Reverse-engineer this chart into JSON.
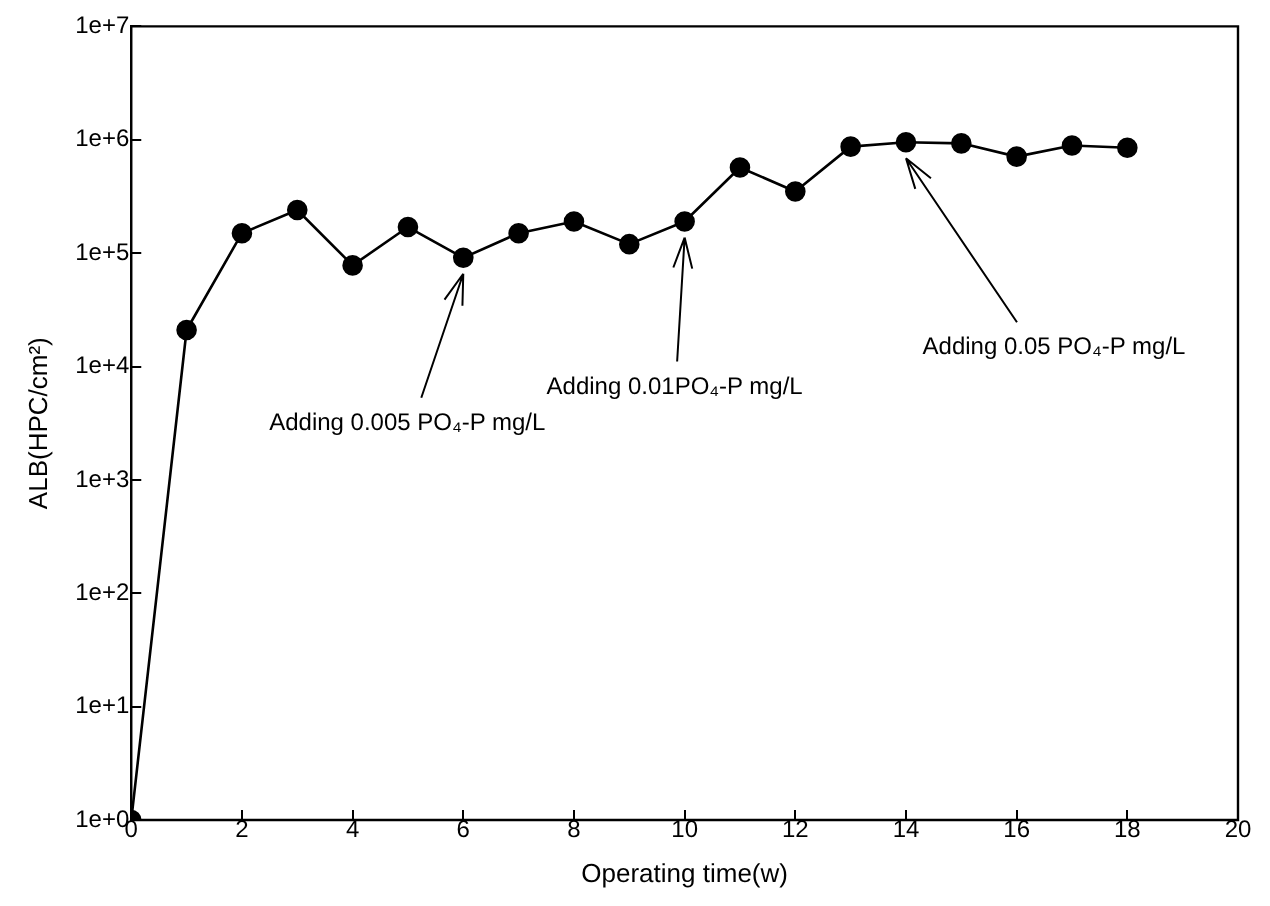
{
  "chart_data": {
    "type": "line",
    "xlabel": "Operating time(w)",
    "ylabel": "ALB(HPC/cm²)",
    "x": [
      0,
      1,
      2,
      3,
      4,
      5,
      6,
      7,
      8,
      9,
      10,
      11,
      12,
      13,
      14,
      15,
      16,
      17,
      18
    ],
    "series": [
      {
        "color": "#000000",
        "values": [
          1,
          21000,
          150000,
          240000,
          78000,
          170000,
          91000,
          150000,
          190000,
          120000,
          190000,
          570000,
          350000,
          870000,
          950000,
          930000,
          710000,
          890000,
          850000
        ]
      }
    ],
    "log": "y",
    "marker": "circle",
    "line_style": "solid",
    "grid": false,
    "legend": false,
    "xlim": [
      0,
      20
    ],
    "xticks": [
      0,
      2,
      4,
      6,
      8,
      10,
      12,
      14,
      16,
      18,
      20
    ],
    "ylim": [
      1,
      10000000
    ],
    "yticks": [
      {
        "value": 1,
        "label": "1e+0"
      },
      {
        "value": 10,
        "label": "1e+1"
      },
      {
        "value": 100,
        "label": "1e+2"
      },
      {
        "value": 1000,
        "label": "1e+3"
      },
      {
        "value": 10000,
        "label": "1e+4"
      },
      {
        "value": 100000,
        "label": "1e+5"
      },
      {
        "value": 1000000,
        "label": "1e+6"
      },
      {
        "value": 10000000,
        "label": "1e+7"
      }
    ],
    "annotations": [
      {
        "text": "Adding 0.005 PO₄-P mg/L",
        "x": 6,
        "y": 91000
      },
      {
        "text": "Adding 0.01PO₄-P mg/L",
        "x": 10,
        "y": 190000
      },
      {
        "text": "Adding 0.05 PO₄-P mg/L",
        "x": 14,
        "y": 950000
      }
    ]
  }
}
